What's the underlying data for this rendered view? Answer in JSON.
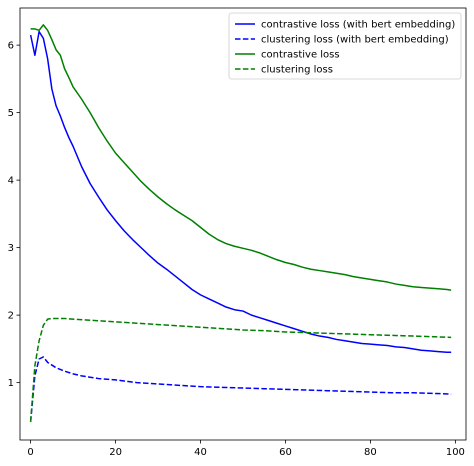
{
  "chart_data": {
    "type": "line",
    "title": "",
    "xlabel": "",
    "ylabel": "",
    "xlim": [
      -2.5,
      102.5
    ],
    "ylim": [
      0.15,
      6.55
    ],
    "x_ticks": [
      0,
      20,
      40,
      60,
      80,
      100
    ],
    "y_ticks": [
      1,
      2,
      3,
      4,
      5,
      6
    ],
    "grid": false,
    "legend_position": "top-right",
    "series": [
      {
        "name": "contrastive loss (with bert embedding)",
        "color": "#0000ff",
        "dash": "solid",
        "x": [
          0,
          1,
          2,
          3,
          4,
          5,
          6,
          7,
          8,
          9,
          10,
          12,
          14,
          16,
          18,
          20,
          22,
          24,
          26,
          28,
          30,
          32,
          34,
          36,
          38,
          40,
          42,
          44,
          46,
          48,
          50,
          52,
          54,
          56,
          58,
          60,
          62,
          64,
          66,
          68,
          70,
          72,
          74,
          76,
          78,
          80,
          82,
          84,
          86,
          88,
          90,
          92,
          94,
          96,
          98,
          99
        ],
        "y": [
          6.15,
          5.85,
          6.2,
          6.1,
          5.8,
          5.35,
          5.1,
          4.95,
          4.78,
          4.63,
          4.5,
          4.2,
          3.95,
          3.75,
          3.56,
          3.4,
          3.25,
          3.12,
          3.0,
          2.88,
          2.77,
          2.68,
          2.58,
          2.48,
          2.38,
          2.3,
          2.24,
          2.18,
          2.12,
          2.08,
          2.06,
          2.0,
          1.96,
          1.92,
          1.88,
          1.84,
          1.8,
          1.76,
          1.72,
          1.69,
          1.67,
          1.64,
          1.62,
          1.6,
          1.58,
          1.57,
          1.56,
          1.55,
          1.53,
          1.52,
          1.5,
          1.48,
          1.47,
          1.46,
          1.45,
          1.45
        ]
      },
      {
        "name": "clustering loss (with bert embedding)",
        "color": "#0000ff",
        "dash": "dashed",
        "x": [
          0,
          1,
          2,
          3,
          4,
          5,
          6,
          8,
          10,
          12,
          14,
          16,
          18,
          20,
          25,
          30,
          35,
          40,
          45,
          50,
          55,
          60,
          65,
          70,
          75,
          80,
          85,
          90,
          95,
          99
        ],
        "y": [
          0.42,
          1.1,
          1.35,
          1.38,
          1.3,
          1.26,
          1.22,
          1.17,
          1.13,
          1.1,
          1.08,
          1.06,
          1.05,
          1.04,
          1.0,
          0.98,
          0.96,
          0.94,
          0.93,
          0.92,
          0.91,
          0.9,
          0.89,
          0.88,
          0.87,
          0.86,
          0.85,
          0.85,
          0.84,
          0.83
        ]
      },
      {
        "name": "contrastive loss",
        "color": "#008000",
        "dash": "solid",
        "x": [
          0,
          1,
          2,
          3,
          4,
          5,
          6,
          7,
          8,
          9,
          10,
          12,
          14,
          16,
          18,
          20,
          22,
          24,
          26,
          28,
          30,
          32,
          34,
          36,
          38,
          40,
          42,
          44,
          46,
          48,
          50,
          52,
          54,
          56,
          58,
          60,
          62,
          64,
          66,
          68,
          70,
          72,
          74,
          76,
          78,
          80,
          82,
          84,
          86,
          88,
          90,
          92,
          94,
          96,
          98,
          99
        ],
        "y": [
          6.24,
          6.24,
          6.22,
          6.3,
          6.22,
          6.08,
          5.93,
          5.85,
          5.65,
          5.52,
          5.38,
          5.2,
          5.0,
          4.78,
          4.58,
          4.4,
          4.26,
          4.12,
          3.98,
          3.86,
          3.75,
          3.65,
          3.56,
          3.48,
          3.4,
          3.3,
          3.2,
          3.12,
          3.06,
          3.02,
          2.99,
          2.96,
          2.92,
          2.87,
          2.82,
          2.78,
          2.75,
          2.71,
          2.68,
          2.66,
          2.64,
          2.62,
          2.6,
          2.57,
          2.55,
          2.53,
          2.51,
          2.49,
          2.46,
          2.44,
          2.42,
          2.41,
          2.4,
          2.39,
          2.38,
          2.37
        ]
      },
      {
        "name": "clustering loss",
        "color": "#008000",
        "dash": "dashed",
        "x": [
          0,
          1,
          2,
          3,
          4,
          5,
          6,
          8,
          10,
          15,
          20,
          25,
          30,
          35,
          40,
          45,
          50,
          55,
          60,
          65,
          70,
          75,
          80,
          85,
          90,
          95,
          99
        ],
        "y": [
          0.42,
          1.25,
          1.62,
          1.85,
          1.94,
          1.95,
          1.95,
          1.95,
          1.94,
          1.92,
          1.9,
          1.88,
          1.86,
          1.84,
          1.82,
          1.8,
          1.78,
          1.77,
          1.75,
          1.74,
          1.73,
          1.72,
          1.71,
          1.7,
          1.69,
          1.68,
          1.67
        ]
      }
    ]
  }
}
